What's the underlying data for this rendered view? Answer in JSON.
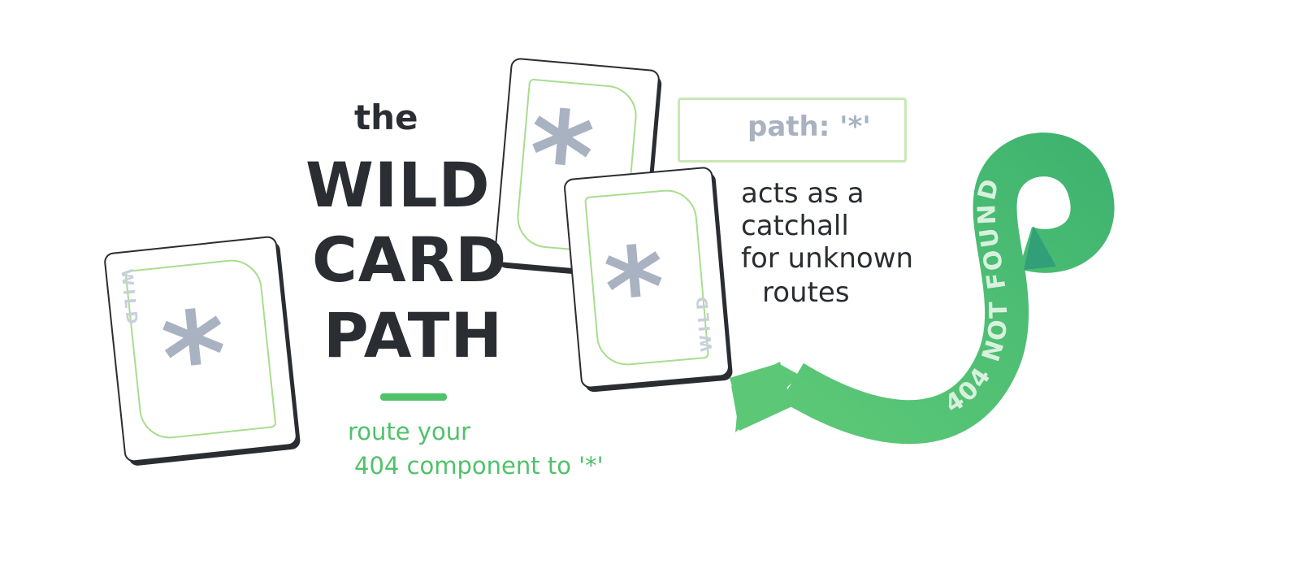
{
  "title": {
    "line1": "the",
    "line2": "WILD",
    "line3": "CARD",
    "line4": "PATH"
  },
  "subtitle": {
    "line1": "route your",
    "line2": "404 component to '*'"
  },
  "path_snippet": "path: '*'",
  "description": {
    "line1": "acts as a",
    "line2": "catchall",
    "line3": "for unknown",
    "line4": "routes"
  },
  "arrow_label": "404 NOT FOUND",
  "card": {
    "symbol": "*",
    "word": "WILD"
  },
  "colors": {
    "ink": "#2a2d31",
    "green": "#4fc26a",
    "green_dark": "#2e9a79",
    "light_green": "#a8dd8e",
    "gray": "#a8b2c1"
  }
}
